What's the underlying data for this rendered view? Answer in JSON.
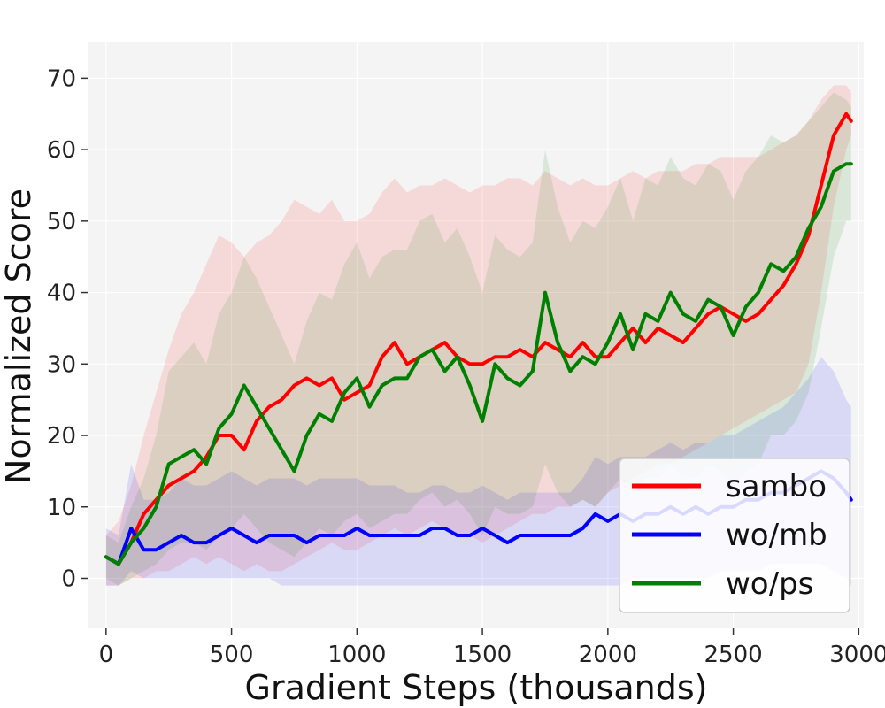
{
  "chart_data": {
    "type": "line",
    "title": "",
    "xlabel": "Gradient Steps (thousands)",
    "ylabel": "Normalized Score",
    "xlim": [
      -70,
      3020
    ],
    "ylim": [
      -7,
      75
    ],
    "x_ticks": [
      0,
      500,
      1000,
      1500,
      2000,
      2500,
      3000
    ],
    "y_ticks": [
      0,
      10,
      20,
      30,
      40,
      50,
      60,
      70
    ],
    "grid": true,
    "legend_position": "bottom-right",
    "background_color": "#f4f4f4",
    "series": [
      {
        "name": "sambo",
        "color": "#ff0000",
        "x": [
          0,
          50,
          100,
          150,
          200,
          250,
          300,
          350,
          400,
          450,
          500,
          550,
          600,
          650,
          700,
          750,
          800,
          850,
          900,
          950,
          1000,
          1050,
          1100,
          1150,
          1200,
          1250,
          1300,
          1350,
          1400,
          1450,
          1500,
          1550,
          1600,
          1650,
          1700,
          1750,
          1800,
          1850,
          1900,
          1950,
          2000,
          2050,
          2100,
          2150,
          2200,
          2250,
          2300,
          2350,
          2400,
          2450,
          2500,
          2550,
          2600,
          2650,
          2700,
          2750,
          2800,
          2850,
          2900,
          2950,
          2970
        ],
        "values": [
          3,
          2,
          5,
          9,
          11,
          13,
          14,
          15,
          17,
          20,
          20,
          18,
          22,
          24,
          25,
          27,
          28,
          27,
          28,
          25,
          26,
          27,
          31,
          33,
          30,
          31,
          32,
          33,
          31,
          30,
          30,
          31,
          31,
          32,
          31,
          33,
          32,
          31,
          33,
          31,
          31,
          33,
          35,
          33,
          35,
          34,
          33,
          35,
          37,
          38,
          37,
          36,
          37,
          39,
          41,
          44,
          48,
          55,
          62,
          65,
          64
        ],
        "band_lower": [
          -1,
          -1,
          0,
          0,
          1,
          1,
          2,
          3,
          2,
          3,
          2,
          1,
          2,
          1,
          1,
          2,
          3,
          4,
          5,
          4,
          4,
          5,
          6,
          7,
          6,
          7,
          8,
          7,
          6,
          6,
          5,
          6,
          7,
          8,
          9,
          9,
          10,
          10,
          11,
          10,
          12,
          13,
          14,
          15,
          16,
          16,
          17,
          18,
          19,
          20,
          21,
          22,
          23,
          24,
          25,
          26,
          30,
          40,
          52,
          60,
          62
        ],
        "band_upper": [
          6,
          8,
          13,
          20,
          26,
          32,
          37,
          40,
          44,
          48,
          47,
          45,
          47,
          48,
          50,
          53,
          52,
          51,
          53,
          50,
          50,
          51,
          54,
          56,
          54,
          55,
          55,
          56,
          55,
          54,
          55,
          55,
          56,
          56,
          55,
          57,
          56,
          55,
          56,
          55,
          55,
          56,
          57,
          56,
          57,
          57,
          57,
          58,
          58,
          59,
          59,
          59,
          59,
          60,
          61,
          62,
          64,
          67,
          69,
          69,
          68
        ]
      },
      {
        "name": "wo/mb",
        "color": "#0000ff",
        "x": [
          0,
          50,
          100,
          150,
          200,
          250,
          300,
          350,
          400,
          450,
          500,
          550,
          600,
          650,
          700,
          750,
          800,
          850,
          900,
          950,
          1000,
          1050,
          1100,
          1150,
          1200,
          1250,
          1300,
          1350,
          1400,
          1450,
          1500,
          1550,
          1600,
          1650,
          1700,
          1750,
          1800,
          1850,
          1900,
          1950,
          2000,
          2050,
          2100,
          2150,
          2200,
          2250,
          2300,
          2350,
          2400,
          2450,
          2500,
          2550,
          2600,
          2650,
          2700,
          2750,
          2800,
          2850,
          2900,
          2950,
          2970
        ],
        "values": [
          3,
          2,
          7,
          4,
          4,
          5,
          6,
          5,
          5,
          6,
          7,
          6,
          5,
          6,
          6,
          6,
          5,
          6,
          6,
          6,
          7,
          6,
          6,
          6,
          6,
          6,
          7,
          7,
          6,
          6,
          7,
          6,
          5,
          6,
          6,
          6,
          6,
          6,
          7,
          9,
          8,
          9,
          8,
          9,
          9,
          10,
          9,
          10,
          9,
          10,
          10,
          11,
          11,
          12,
          12,
          13,
          14,
          15,
          14,
          12,
          11
        ],
        "band_lower": [
          -1,
          -1,
          1,
          0,
          0,
          0,
          0,
          0,
          0,
          0,
          0,
          0,
          0,
          0,
          -1,
          -1,
          -1,
          -1,
          -1,
          -1,
          -1,
          -1,
          -1,
          -1,
          -1,
          -1,
          -1,
          -1,
          -1,
          -1,
          -1,
          -1,
          -1,
          -1,
          -1,
          -1,
          -1,
          -1,
          -1,
          -1,
          -1,
          -1,
          0,
          0,
          0,
          0,
          0,
          0,
          0,
          1,
          1,
          1,
          1,
          2,
          2,
          2,
          2,
          2,
          1,
          0,
          -1
        ],
        "band_upper": [
          7,
          6,
          16,
          11,
          11,
          12,
          14,
          13,
          13,
          14,
          15,
          14,
          13,
          14,
          14,
          14,
          13,
          14,
          14,
          14,
          14,
          13,
          13,
          13,
          12,
          12,
          13,
          13,
          12,
          12,
          13,
          12,
          11,
          12,
          12,
          12,
          12,
          12,
          14,
          17,
          16,
          17,
          17,
          17,
          18,
          19,
          18,
          19,
          19,
          20,
          20,
          21,
          22,
          23,
          24,
          26,
          28,
          31,
          29,
          25,
          24
        ]
      },
      {
        "name": "wo/ps",
        "color": "#008000",
        "x": [
          0,
          50,
          100,
          150,
          200,
          250,
          300,
          350,
          400,
          450,
          500,
          550,
          600,
          650,
          700,
          750,
          800,
          850,
          900,
          950,
          1000,
          1050,
          1100,
          1150,
          1200,
          1250,
          1300,
          1350,
          1400,
          1450,
          1500,
          1550,
          1600,
          1650,
          1700,
          1750,
          1800,
          1850,
          1900,
          1950,
          2000,
          2050,
          2100,
          2150,
          2200,
          2250,
          2300,
          2350,
          2400,
          2450,
          2500,
          2550,
          2600,
          2650,
          2700,
          2750,
          2800,
          2850,
          2900,
          2950,
          2970
        ],
        "values": [
          3,
          2,
          5,
          7,
          10,
          16,
          17,
          18,
          16,
          21,
          23,
          27,
          24,
          21,
          18,
          15,
          20,
          23,
          22,
          26,
          28,
          24,
          27,
          28,
          28,
          31,
          32,
          29,
          31,
          27,
          22,
          30,
          28,
          27,
          29,
          40,
          33,
          29,
          31,
          30,
          33,
          37,
          32,
          37,
          36,
          40,
          37,
          36,
          39,
          38,
          34,
          38,
          40,
          44,
          43,
          45,
          49,
          52,
          57,
          58,
          58
        ],
        "band_lower": [
          0,
          -1,
          0,
          1,
          2,
          4,
          5,
          5,
          4,
          6,
          7,
          9,
          7,
          5,
          4,
          3,
          5,
          7,
          6,
          8,
          9,
          7,
          8,
          9,
          9,
          11,
          12,
          10,
          11,
          9,
          6,
          10,
          9,
          9,
          10,
          16,
          12,
          10,
          11,
          10,
          12,
          14,
          12,
          14,
          14,
          16,
          14,
          14,
          16,
          15,
          13,
          15,
          16,
          20,
          20,
          22,
          26,
          35,
          45,
          50,
          50
        ],
        "band_upper": [
          6,
          5,
          10,
          14,
          20,
          29,
          31,
          33,
          30,
          37,
          40,
          45,
          42,
          38,
          34,
          30,
          36,
          40,
          39,
          44,
          47,
          42,
          45,
          46,
          46,
          50,
          51,
          47,
          49,
          45,
          40,
          48,
          46,
          45,
          47,
          60,
          52,
          47,
          50,
          49,
          52,
          56,
          50,
          56,
          55,
          59,
          56,
          55,
          58,
          57,
          53,
          57,
          59,
          62,
          61,
          62,
          64,
          66,
          68,
          67,
          66
        ]
      }
    ]
  }
}
